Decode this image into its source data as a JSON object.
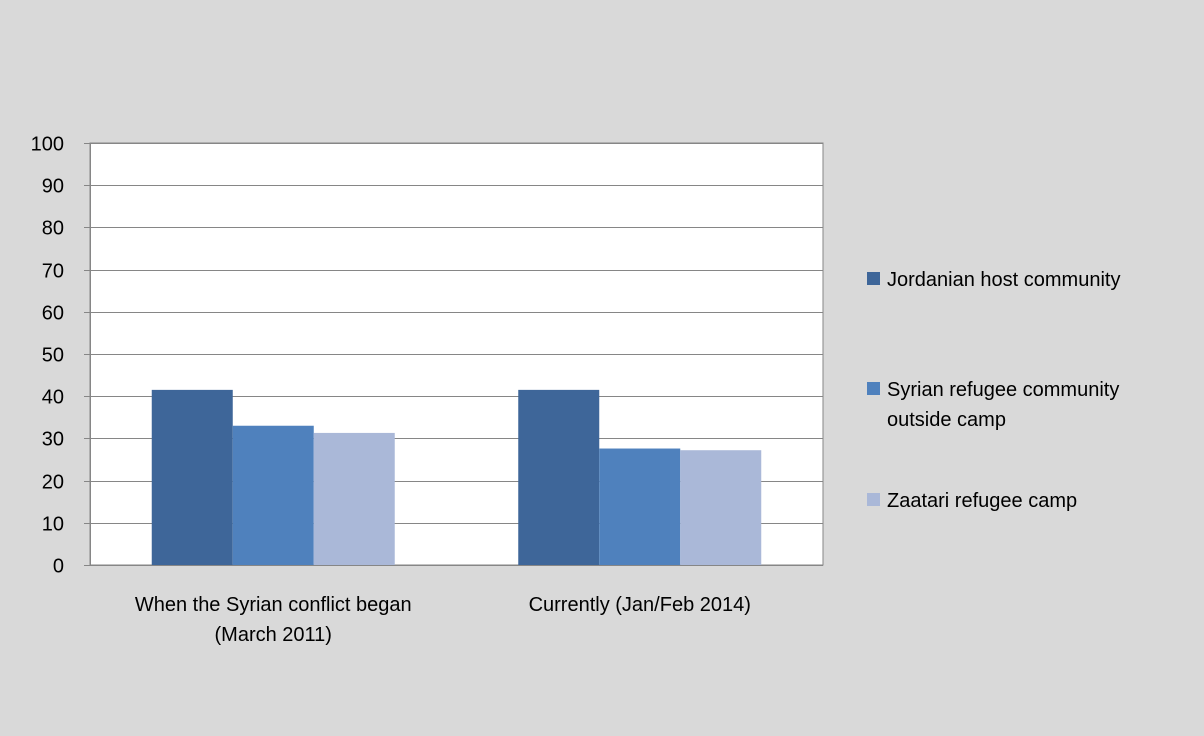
{
  "chart_data": {
    "type": "bar",
    "title": "",
    "xlabel": "",
    "ylabel": "",
    "ylim": [
      0,
      100
    ],
    "yticks": [
      0,
      10,
      20,
      30,
      40,
      50,
      60,
      70,
      80,
      90,
      100
    ],
    "grid": true,
    "legend_position": "right",
    "categories": [
      [
        "When the Syrian conflict began",
        "(March 2011)"
      ],
      [
        "Currently (Jan/Feb 2014)"
      ]
    ],
    "series": [
      {
        "name": "Jordanian host community",
        "color": "#3e6699",
        "values": [
          41.5,
          41.5
        ]
      },
      {
        "name": [
          "Syrian refugee community",
          "outside camp"
        ],
        "color": "#4f81bd",
        "values": [
          33.0,
          27.6
        ]
      },
      {
        "name": "Zaatari refugee camp",
        "color": "#aab8d8",
        "values": [
          31.3,
          27.2
        ]
      }
    ],
    "colors": {
      "background": "#d9d9d9",
      "plot_area": "#ffffff",
      "gridline": "#868686"
    }
  }
}
